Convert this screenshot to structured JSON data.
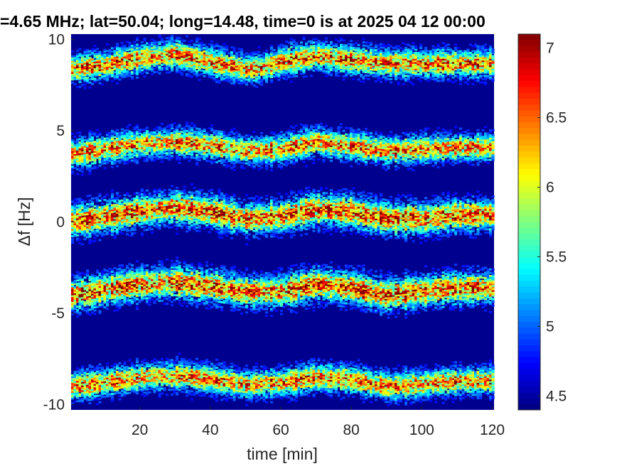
{
  "chart_data": {
    "type": "heatmap",
    "title": "=4.65 MHz;  lat=50.04; long=14.48, time=0 is at 2025 04 12 00:00",
    "xlabel": "time [min]",
    "ylabel": "Δf [Hz]",
    "xlim": [
      0.5,
      120.5
    ],
    "ylim": [
      -10.3,
      10.3
    ],
    "x_ticks": [
      20,
      40,
      60,
      80,
      100,
      120
    ],
    "x_tick_labels": [
      "20",
      "40",
      "60",
      "80",
      "100",
      "120"
    ],
    "y_ticks": [
      10,
      5,
      0,
      -5,
      -10
    ],
    "y_tick_labels": [
      "10",
      "5",
      "0",
      "-5",
      "-10"
    ],
    "colorbar": {
      "clim": [
        4.4,
        7.1
      ],
      "ticks": [
        7,
        6.5,
        6,
        5.5,
        5,
        4.5
      ],
      "tick_labels": [
        "7",
        "6.5",
        "6",
        "5.5",
        "5",
        "4.5"
      ],
      "colormap": "jet"
    },
    "background_value": 4.45,
    "bands": [
      {
        "name": "",
        "center": [
          [
            0,
            8.4
          ],
          [
            10,
            8.6
          ],
          [
            20,
            9.0
          ],
          [
            30,
            9.2
          ],
          [
            40,
            8.8
          ],
          [
            50,
            8.4
          ],
          [
            55,
            8.5
          ],
          [
            62,
            8.9
          ],
          [
            70,
            9.1
          ],
          [
            80,
            8.9
          ],
          [
            90,
            8.7
          ],
          [
            100,
            8.7
          ],
          [
            110,
            8.7
          ],
          [
            120,
            8.7
          ]
        ],
        "peak": 6.9,
        "width": 0.35
      },
      {
        "name": "",
        "center": [
          [
            0,
            3.7
          ],
          [
            10,
            4.0
          ],
          [
            20,
            4.3
          ],
          [
            30,
            4.4
          ],
          [
            40,
            4.2
          ],
          [
            50,
            3.9
          ],
          [
            60,
            4.0
          ],
          [
            70,
            4.4
          ],
          [
            80,
            4.2
          ],
          [
            90,
            3.9
          ],
          [
            100,
            4.0
          ],
          [
            110,
            4.1
          ],
          [
            120,
            4.1
          ]
        ],
        "peak": 6.8,
        "width": 0.35
      },
      {
        "name": "",
        "center": [
          [
            0,
            0.0
          ],
          [
            10,
            0.3
          ],
          [
            20,
            0.6
          ],
          [
            30,
            0.8
          ],
          [
            40,
            0.6
          ],
          [
            50,
            0.2
          ],
          [
            60,
            0.3
          ],
          [
            70,
            0.7
          ],
          [
            80,
            0.6
          ],
          [
            90,
            0.2
          ],
          [
            100,
            0.2
          ],
          [
            110,
            0.4
          ],
          [
            120,
            0.4
          ]
        ],
        "peak": 7.0,
        "width": 0.4
      },
      {
        "name": "",
        "center": [
          [
            0,
            -4.0
          ],
          [
            10,
            -3.7
          ],
          [
            20,
            -3.4
          ],
          [
            30,
            -3.3
          ],
          [
            40,
            -3.5
          ],
          [
            50,
            -3.8
          ],
          [
            60,
            -3.8
          ],
          [
            70,
            -3.4
          ],
          [
            80,
            -3.6
          ],
          [
            90,
            -4.0
          ],
          [
            100,
            -3.8
          ],
          [
            110,
            -3.6
          ],
          [
            120,
            -3.6
          ]
        ],
        "peak": 7.0,
        "width": 0.4
      },
      {
        "name": "",
        "center": [
          [
            0,
            -9.0
          ],
          [
            10,
            -8.8
          ],
          [
            20,
            -8.5
          ],
          [
            30,
            -8.4
          ],
          [
            40,
            -8.6
          ],
          [
            50,
            -8.9
          ],
          [
            60,
            -8.8
          ],
          [
            70,
            -8.5
          ],
          [
            80,
            -8.6
          ],
          [
            90,
            -9.0
          ],
          [
            100,
            -8.9
          ],
          [
            110,
            -8.7
          ],
          [
            120,
            -8.7
          ]
        ],
        "peak": 6.8,
        "width": 0.35
      }
    ]
  }
}
